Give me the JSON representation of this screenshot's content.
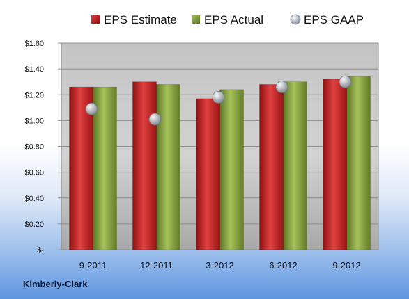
{
  "company": "Kimberly-Clark",
  "chart_data": {
    "type": "bar",
    "categories": [
      "9-2011",
      "12-2011",
      "3-2012",
      "6-2012",
      "9-2012"
    ],
    "series": [
      {
        "name": "EPS Estimate",
        "kind": "bar",
        "color": "#cc2a2a",
        "values": [
          1.26,
          1.3,
          1.17,
          1.28,
          1.32
        ]
      },
      {
        "name": "EPS Actual",
        "kind": "bar",
        "color": "#8aa83e",
        "values": [
          1.26,
          1.28,
          1.24,
          1.3,
          1.34
        ]
      },
      {
        "name": "EPS GAAP",
        "kind": "marker",
        "color": "#b8c0cc",
        "values": [
          1.09,
          1.01,
          1.18,
          1.26,
          1.3
        ]
      }
    ],
    "ylim": [
      0,
      1.6
    ],
    "yticks": [
      "$-",
      "$0.20",
      "$0.40",
      "$0.60",
      "$0.80",
      "$1.00",
      "$1.20",
      "$1.40",
      "$1.60"
    ],
    "grid": true,
    "legend_position": "top"
  }
}
